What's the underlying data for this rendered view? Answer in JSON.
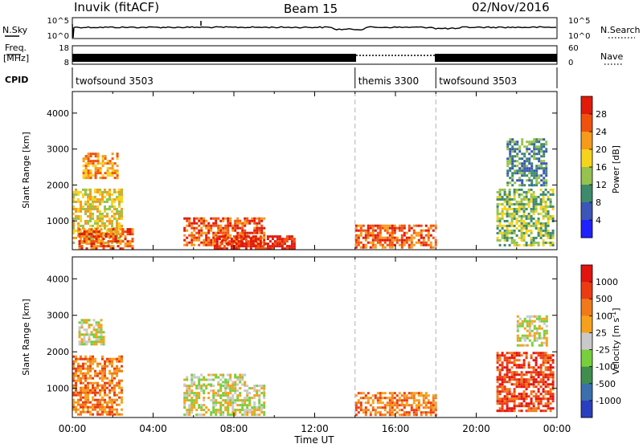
{
  "header": {
    "site_title": "Inuvik (fitACF)",
    "beam": "Beam 15",
    "date": "02/Nov/2016"
  },
  "noise_panel": {
    "left_label": "N.Sky",
    "right_label": "N.Search",
    "ticks_left": [
      "10^5",
      "10^0"
    ],
    "ticks_right": [
      "10^5",
      "10^0"
    ]
  },
  "freq_panel": {
    "left_label_1": "Freq.",
    "left_label_2": "[MHz]",
    "right_label": "Nave",
    "ticks_left": [
      "18",
      "8"
    ],
    "ticks_right": [
      "60",
      "0"
    ]
  },
  "cpid_panel": {
    "label": "CPID",
    "segments": [
      {
        "name": "twofsound 3503",
        "start_hour": 0,
        "end_hour": 14
      },
      {
        "name": "themis 3300",
        "start_hour": 14,
        "end_hour": 18
      },
      {
        "name": "twofsound 3503",
        "start_hour": 18,
        "end_hour": 24
      }
    ]
  },
  "chart_data": [
    {
      "type": "heatmap",
      "quantity": "Power",
      "ylabel": "Slant Range [km]",
      "xlim_hours": [
        0,
        24
      ],
      "ylim": [
        200,
        4600
      ],
      "yticks": [
        1000,
        2000,
        3000,
        4000
      ],
      "colorbar_label": "Power [dB]",
      "colorbar_ticks": [
        "4",
        "8",
        "12",
        "16",
        "20",
        "24",
        "28"
      ],
      "colorbar_colors": [
        "#1e22ff",
        "#3b56b8",
        "#3e8a6c",
        "#96c24e",
        "#f6d31c",
        "#f59a1b",
        "#f0520e",
        "#e11a0b"
      ],
      "regions": [
        {
          "t0": 0.0,
          "t1": 2.5,
          "r0": 400,
          "r1": 1900,
          "level": 4
        },
        {
          "t0": 0.3,
          "t1": 3.0,
          "r0": 250,
          "r1": 800,
          "level": 6
        },
        {
          "t0": 0.5,
          "t1": 2.2,
          "r0": 2200,
          "r1": 2900,
          "level": 5
        },
        {
          "t0": 5.5,
          "t1": 9.5,
          "r0": 300,
          "r1": 1100,
          "level": 6
        },
        {
          "t0": 7.0,
          "t1": 11.0,
          "r0": 250,
          "r1": 600,
          "level": 7
        },
        {
          "t0": 14.0,
          "t1": 18.0,
          "r0": 250,
          "r1": 900,
          "level": 6
        },
        {
          "t0": 21.0,
          "t1": 23.8,
          "r0": 300,
          "r1": 1900,
          "level": 3
        },
        {
          "t0": 21.5,
          "t1": 23.5,
          "r0": 2000,
          "r1": 3300,
          "level": 2
        }
      ]
    },
    {
      "type": "heatmap",
      "quantity": "Velocity",
      "ylabel": "Slant Range [km]",
      "xlabel": "Time UT",
      "xlim_hours": [
        0,
        24
      ],
      "xticks": [
        "00:00",
        "04:00",
        "08:00",
        "12:00",
        "16:00",
        "20:00",
        "00:00"
      ],
      "ylim": [
        200,
        4600
      ],
      "yticks": [
        1000,
        2000,
        3000,
        4000
      ],
      "colorbar_label": "Velocity [m s^-1]",
      "colorbar_ticks": [
        "1000",
        "500",
        "100",
        "25",
        "-25",
        "-100",
        "-500",
        "-1000"
      ],
      "colorbar_colors": [
        "#2a3fbf",
        "#3b6fae",
        "#3f8e4e",
        "#77cf3c",
        "#c9c9c9",
        "#f6a11b",
        "#f07a1a",
        "#ec3b12",
        "#e1140f"
      ],
      "regions": [
        {
          "t0": 0.0,
          "t1": 2.5,
          "r0": 300,
          "r1": 1900,
          "level": 6
        },
        {
          "t0": 0.3,
          "t1": 1.5,
          "r0": 2200,
          "r1": 2900,
          "level": 4
        },
        {
          "t0": 5.5,
          "t1": 9.5,
          "r0": 300,
          "r1": 1100,
          "level": 4
        },
        {
          "t0": 5.5,
          "t1": 8.5,
          "r0": 1100,
          "r1": 1400,
          "level": 4
        },
        {
          "t0": 14.0,
          "t1": 18.0,
          "r0": 250,
          "r1": 900,
          "level": 6
        },
        {
          "t0": 21.0,
          "t1": 23.8,
          "r0": 400,
          "r1": 2000,
          "level": 7
        },
        {
          "t0": 22.0,
          "t1": 23.5,
          "r0": 2200,
          "r1": 3000,
          "level": 4
        }
      ]
    }
  ]
}
